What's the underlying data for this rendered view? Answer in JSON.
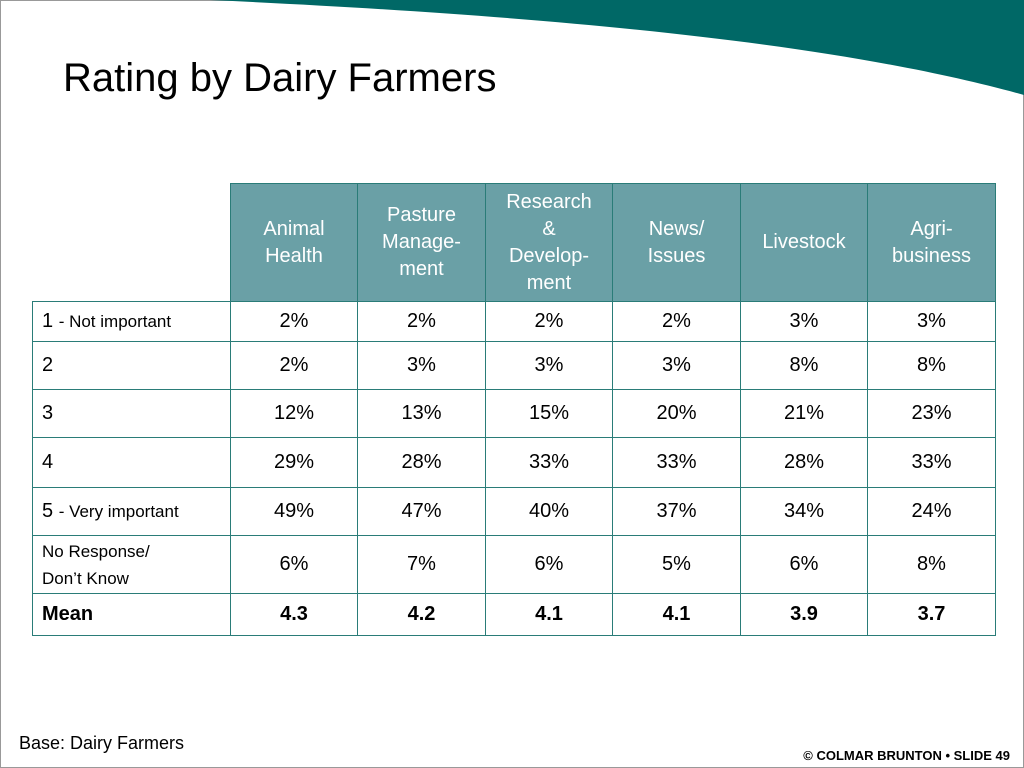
{
  "title": "Rating by Dairy Farmers",
  "table": {
    "columns": [
      "Animal\nHealth",
      "Pasture\nManage-\nment",
      "Research\n&\nDevelop-\nment",
      "News/\nIssues",
      "Livestock",
      "Agri-\nbusiness"
    ],
    "rows": [
      {
        "label": "1",
        "note": "- Not important",
        "cells": [
          "2%",
          "2%",
          "2%",
          "2%",
          "3%",
          "3%"
        ]
      },
      {
        "label": "2",
        "cells": [
          "2%",
          "3%",
          "3%",
          "3%",
          "8%",
          "8%"
        ]
      },
      {
        "label": "3",
        "cells": [
          "12%",
          "13%",
          "15%",
          "20%",
          "21%",
          "23%"
        ]
      },
      {
        "label": "4",
        "cells": [
          "29%",
          "28%",
          "33%",
          "33%",
          "28%",
          "33%"
        ]
      },
      {
        "label": "5",
        "note": "- Very important",
        "cells": [
          "49%",
          "47%",
          "40%",
          "37%",
          "34%",
          "24%"
        ]
      },
      {
        "label": "No Response/\nDon’t Know",
        "cells": [
          "6%",
          "7%",
          "6%",
          "5%",
          "6%",
          "8%"
        ]
      },
      {
        "label": "Mean",
        "bold": true,
        "cells": [
          "4.3",
          "4.2",
          "4.1",
          "4.1",
          "3.9",
          "3.7"
        ]
      }
    ]
  },
  "footer": {
    "base": "Base: Dairy Farmers",
    "credit": "© COLMAR BRUNTON • SLIDE 49"
  }
}
